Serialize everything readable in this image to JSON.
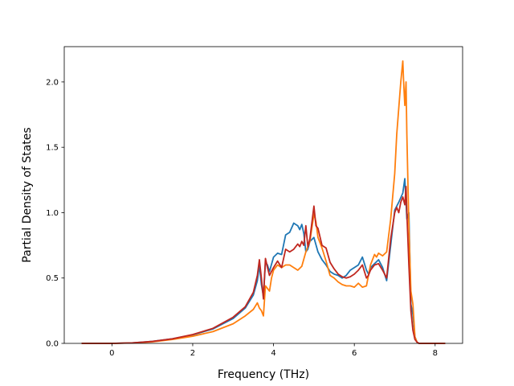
{
  "chart_data": {
    "type": "line",
    "title": "",
    "xlabel": "Frequency (THz)",
    "ylabel": "Partial Density of States",
    "xlim": [
      -1.18,
      8.68
    ],
    "ylim": [
      0.0,
      2.27
    ],
    "xticks": [
      0,
      2,
      4,
      6,
      8
    ],
    "xtick_labels": [
      "0",
      "2",
      "4",
      "6",
      "8"
    ],
    "yticks": [
      0.0,
      0.5,
      1.0,
      1.5,
      2.0
    ],
    "ytick_labels": [
      "0.0",
      "0.5",
      "1.0",
      "1.5",
      "2.0"
    ],
    "grid": false,
    "legend": "none",
    "series": [
      {
        "color": "#1f77b4",
        "points": [
          [
            -0.75,
            0
          ],
          [
            0,
            0
          ],
          [
            0.5,
            0.004
          ],
          [
            1.0,
            0.015
          ],
          [
            1.5,
            0.035
          ],
          [
            2.0,
            0.065
          ],
          [
            2.5,
            0.11
          ],
          [
            3.0,
            0.19
          ],
          [
            3.3,
            0.27
          ],
          [
            3.5,
            0.37
          ],
          [
            3.6,
            0.48
          ],
          [
            3.65,
            0.6
          ],
          [
            3.7,
            0.45
          ],
          [
            3.75,
            0.36
          ],
          [
            3.8,
            0.62
          ],
          [
            3.85,
            0.6
          ],
          [
            3.9,
            0.55
          ],
          [
            4.0,
            0.66
          ],
          [
            4.1,
            0.69
          ],
          [
            4.2,
            0.68
          ],
          [
            4.3,
            0.83
          ],
          [
            4.4,
            0.85
          ],
          [
            4.5,
            0.92
          ],
          [
            4.6,
            0.9
          ],
          [
            4.65,
            0.87
          ],
          [
            4.7,
            0.91
          ],
          [
            4.75,
            0.84
          ],
          [
            4.8,
            0.7
          ],
          [
            4.85,
            0.72
          ],
          [
            4.9,
            0.78
          ],
          [
            5.0,
            0.81
          ],
          [
            5.1,
            0.7
          ],
          [
            5.2,
            0.64
          ],
          [
            5.3,
            0.6
          ],
          [
            5.4,
            0.55
          ],
          [
            5.5,
            0.53
          ],
          [
            5.6,
            0.52
          ],
          [
            5.7,
            0.5
          ],
          [
            5.8,
            0.52
          ],
          [
            5.9,
            0.56
          ],
          [
            6.0,
            0.58
          ],
          [
            6.1,
            0.6
          ],
          [
            6.2,
            0.66
          ],
          [
            6.3,
            0.56
          ],
          [
            6.35,
            0.53
          ],
          [
            6.4,
            0.58
          ],
          [
            6.5,
            0.61
          ],
          [
            6.6,
            0.64
          ],
          [
            6.7,
            0.58
          ],
          [
            6.8,
            0.48
          ],
          [
            6.9,
            0.75
          ],
          [
            7.0,
            1.02
          ],
          [
            7.1,
            1.08
          ],
          [
            7.2,
            1.15
          ],
          [
            7.25,
            1.26
          ],
          [
            7.3,
            0.95
          ],
          [
            7.35,
            1.0
          ],
          [
            7.4,
            0.3
          ],
          [
            7.45,
            0.22
          ],
          [
            7.5,
            0.05
          ],
          [
            7.55,
            0.01
          ],
          [
            7.6,
            0
          ],
          [
            8.25,
            0
          ]
        ]
      },
      {
        "color": "#ff7f0e",
        "points": [
          [
            -0.75,
            0
          ],
          [
            0,
            0
          ],
          [
            0.5,
            0.003
          ],
          [
            1.0,
            0.012
          ],
          [
            1.5,
            0.03
          ],
          [
            2.0,
            0.055
          ],
          [
            2.5,
            0.09
          ],
          [
            3.0,
            0.15
          ],
          [
            3.3,
            0.21
          ],
          [
            3.5,
            0.26
          ],
          [
            3.6,
            0.31
          ],
          [
            3.65,
            0.27
          ],
          [
            3.7,
            0.25
          ],
          [
            3.75,
            0.21
          ],
          [
            3.8,
            0.44
          ],
          [
            3.85,
            0.42
          ],
          [
            3.9,
            0.4
          ],
          [
            3.95,
            0.5
          ],
          [
            4.0,
            0.56
          ],
          [
            4.1,
            0.6
          ],
          [
            4.2,
            0.58
          ],
          [
            4.3,
            0.6
          ],
          [
            4.4,
            0.6
          ],
          [
            4.5,
            0.58
          ],
          [
            4.6,
            0.56
          ],
          [
            4.7,
            0.59
          ],
          [
            4.8,
            0.7
          ],
          [
            4.9,
            0.78
          ],
          [
            5.0,
            0.99
          ],
          [
            5.05,
            0.93
          ],
          [
            5.1,
            0.81
          ],
          [
            5.2,
            0.73
          ],
          [
            5.3,
            0.63
          ],
          [
            5.4,
            0.52
          ],
          [
            5.5,
            0.5
          ],
          [
            5.6,
            0.47
          ],
          [
            5.7,
            0.45
          ],
          [
            5.8,
            0.44
          ],
          [
            5.9,
            0.44
          ],
          [
            6.0,
            0.43
          ],
          [
            6.1,
            0.46
          ],
          [
            6.2,
            0.43
          ],
          [
            6.3,
            0.44
          ],
          [
            6.4,
            0.6
          ],
          [
            6.5,
            0.68
          ],
          [
            6.55,
            0.66
          ],
          [
            6.6,
            0.69
          ],
          [
            6.7,
            0.67
          ],
          [
            6.8,
            0.7
          ],
          [
            6.9,
            0.95
          ],
          [
            7.0,
            1.3
          ],
          [
            7.05,
            1.6
          ],
          [
            7.1,
            1.8
          ],
          [
            7.15,
            2.0
          ],
          [
            7.2,
            2.16
          ],
          [
            7.22,
            2.0
          ],
          [
            7.25,
            1.82
          ],
          [
            7.28,
            2.0
          ],
          [
            7.3,
            1.6
          ],
          [
            7.35,
            0.9
          ],
          [
            7.4,
            0.4
          ],
          [
            7.45,
            0.3
          ],
          [
            7.5,
            0.05
          ],
          [
            7.55,
            0.01
          ],
          [
            7.6,
            0
          ],
          [
            8.25,
            0
          ]
        ]
      },
      {
        "color": "#c0271f",
        "points": [
          [
            -0.75,
            0
          ],
          [
            0,
            0
          ],
          [
            0.5,
            0.004
          ],
          [
            1.0,
            0.015
          ],
          [
            1.5,
            0.035
          ],
          [
            2.0,
            0.068
          ],
          [
            2.5,
            0.115
          ],
          [
            3.0,
            0.2
          ],
          [
            3.3,
            0.28
          ],
          [
            3.5,
            0.39
          ],
          [
            3.6,
            0.52
          ],
          [
            3.65,
            0.64
          ],
          [
            3.7,
            0.5
          ],
          [
            3.75,
            0.34
          ],
          [
            3.8,
            0.65
          ],
          [
            3.85,
            0.58
          ],
          [
            3.9,
            0.52
          ],
          [
            4.0,
            0.58
          ],
          [
            4.1,
            0.63
          ],
          [
            4.2,
            0.58
          ],
          [
            4.3,
            0.72
          ],
          [
            4.4,
            0.7
          ],
          [
            4.5,
            0.72
          ],
          [
            4.6,
            0.76
          ],
          [
            4.65,
            0.74
          ],
          [
            4.7,
            0.78
          ],
          [
            4.75,
            0.75
          ],
          [
            4.8,
            0.9
          ],
          [
            4.85,
            0.74
          ],
          [
            4.9,
            0.8
          ],
          [
            5.0,
            1.05
          ],
          [
            5.05,
            0.9
          ],
          [
            5.1,
            0.88
          ],
          [
            5.2,
            0.75
          ],
          [
            5.3,
            0.73
          ],
          [
            5.4,
            0.62
          ],
          [
            5.5,
            0.57
          ],
          [
            5.6,
            0.53
          ],
          [
            5.7,
            0.51
          ],
          [
            5.8,
            0.5
          ],
          [
            5.9,
            0.51
          ],
          [
            6.0,
            0.53
          ],
          [
            6.1,
            0.56
          ],
          [
            6.2,
            0.6
          ],
          [
            6.3,
            0.5
          ],
          [
            6.35,
            0.52
          ],
          [
            6.4,
            0.56
          ],
          [
            6.5,
            0.6
          ],
          [
            6.6,
            0.61
          ],
          [
            6.7,
            0.56
          ],
          [
            6.8,
            0.5
          ],
          [
            6.9,
            0.8
          ],
          [
            7.0,
            1.0
          ],
          [
            7.05,
            1.04
          ],
          [
            7.1,
            1.0
          ],
          [
            7.15,
            1.08
          ],
          [
            7.2,
            1.12
          ],
          [
            7.25,
            1.06
          ],
          [
            7.28,
            1.2
          ],
          [
            7.3,
            1.0
          ],
          [
            7.35,
            0.6
          ],
          [
            7.4,
            0.25
          ],
          [
            7.45,
            0.1
          ],
          [
            7.5,
            0.03
          ],
          [
            7.55,
            0.01
          ],
          [
            7.6,
            0
          ],
          [
            8.25,
            0
          ]
        ]
      }
    ]
  }
}
